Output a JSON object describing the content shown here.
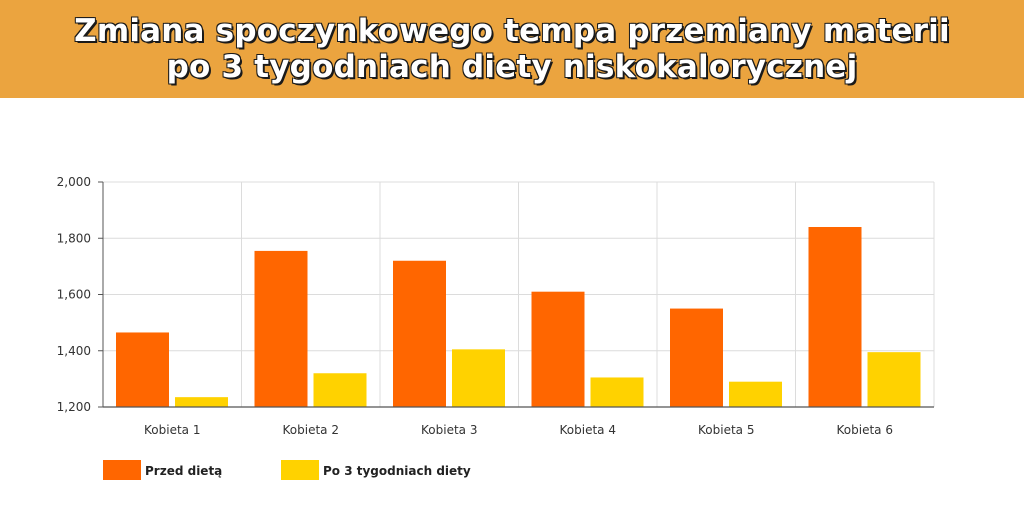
{
  "header": {
    "title_line1": "Zmiana spoczynkowego tempa przemiany materii",
    "title_line2": "po 3 tygodniach diety niskokalorycznej"
  },
  "chart_data": {
    "type": "bar",
    "categories": [
      "Kobieta 1",
      "Kobieta 2",
      "Kobieta 3",
      "Kobieta 4",
      "Kobieta 5",
      "Kobieta 6"
    ],
    "series": [
      {
        "name": "Przed dietą",
        "color": "#ff6600",
        "values": [
          1465,
          1755,
          1720,
          1610,
          1550,
          1840
        ]
      },
      {
        "name": "Po 3 tygodniach diety",
        "color": "#ffd200",
        "values": [
          1235,
          1320,
          1405,
          1305,
          1290,
          1395
        ]
      }
    ],
    "ylim": [
      1200,
      2000
    ],
    "yticks": [
      1200,
      1400,
      1600,
      1800,
      2000
    ],
    "ytick_labels": [
      "1,200",
      "1,400",
      "1,600",
      "1,800",
      "2,000"
    ],
    "grid": true,
    "legend_position": "bottom-left",
    "title": "",
    "xlabel": "",
    "ylabel": ""
  }
}
